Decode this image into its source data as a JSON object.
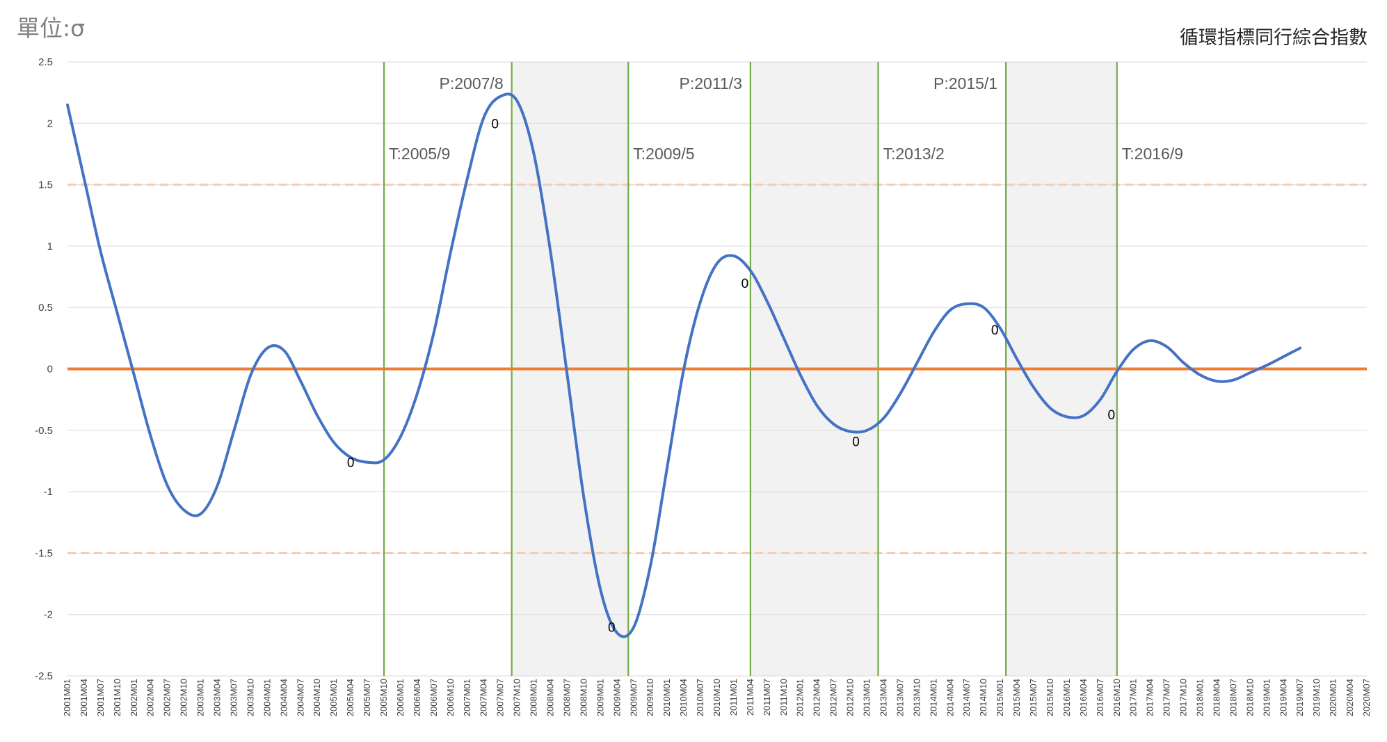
{
  "unit_label": "單位:σ",
  "chart_title": "循環指標同行綜合指數",
  "chart_data": {
    "type": "line",
    "title": "循環指標同行綜合指數",
    "ylabel": "單位:σ",
    "ylim": [
      -2.5,
      2.5
    ],
    "yticks": [
      "2.5",
      "2",
      "1.5",
      "1",
      "0.5",
      "0",
      "-0.5",
      "-1",
      "-1.5",
      "-2",
      "-2.5"
    ],
    "ytick_values": [
      2.5,
      2,
      1.5,
      1,
      0.5,
      0,
      -0.5,
      -1,
      -1.5,
      -2,
      -2.5
    ],
    "x_start": "2001M01",
    "x_end": "2020M07",
    "xtick_step_months": 3,
    "grid": "horizontal",
    "colors": {
      "series": "#4472C4",
      "zero_line": "#ED7D31",
      "threshold": "#F8CBAD",
      "turning_point": "#70AD47",
      "shading": "#F2F2F2",
      "grid": "#D9D9D9"
    },
    "series": [
      {
        "points": [
          [
            "2001M01",
            2.15
          ],
          [
            "2001M04",
            1.55
          ],
          [
            "2001M07",
            0.95
          ],
          [
            "2001M10",
            0.45
          ],
          [
            "2002M01",
            -0.05
          ],
          [
            "2002M04",
            -0.55
          ],
          [
            "2002M07",
            -0.95
          ],
          [
            "2002M10",
            -1.15
          ],
          [
            "2003M01",
            -1.18
          ],
          [
            "2003M04",
            -0.95
          ],
          [
            "2003M07",
            -0.5
          ],
          [
            "2003M10",
            -0.05
          ],
          [
            "2004M01",
            0.17
          ],
          [
            "2004M04",
            0.15
          ],
          [
            "2004M07",
            -0.1
          ],
          [
            "2004M10",
            -0.38
          ],
          [
            "2005M01",
            -0.6
          ],
          [
            "2005M04",
            -0.72
          ],
          [
            "2005M07",
            -0.76
          ],
          [
            "2005M10",
            -0.74
          ],
          [
            "2006M01",
            -0.55
          ],
          [
            "2006M04",
            -0.2
          ],
          [
            "2006M07",
            0.3
          ],
          [
            "2006M10",
            0.95
          ],
          [
            "2007M01",
            1.55
          ],
          [
            "2007M04",
            2.05
          ],
          [
            "2007M07",
            2.22
          ],
          [
            "2007M10",
            2.18
          ],
          [
            "2008M01",
            1.75
          ],
          [
            "2008M04",
            0.95
          ],
          [
            "2008M07",
            -0.05
          ],
          [
            "2008M10",
            -1.05
          ],
          [
            "2009M01",
            -1.8
          ],
          [
            "2009M04",
            -2.15
          ],
          [
            "2009M07",
            -2.1
          ],
          [
            "2009M10",
            -1.6
          ],
          [
            "2010M01",
            -0.8
          ],
          [
            "2010M04",
            0.0
          ],
          [
            "2010M07",
            0.55
          ],
          [
            "2010M10",
            0.86
          ],
          [
            "2011M01",
            0.92
          ],
          [
            "2011M04",
            0.8
          ],
          [
            "2011M07",
            0.55
          ],
          [
            "2011M10",
            0.25
          ],
          [
            "2012M01",
            -0.05
          ],
          [
            "2012M04",
            -0.3
          ],
          [
            "2012M07",
            -0.45
          ],
          [
            "2012M10",
            -0.51
          ],
          [
            "2013M01",
            -0.5
          ],
          [
            "2013M04",
            -0.4
          ],
          [
            "2013M07",
            -0.2
          ],
          [
            "2013M10",
            0.05
          ],
          [
            "2014M01",
            0.3
          ],
          [
            "2014M04",
            0.48
          ],
          [
            "2014M07",
            0.53
          ],
          [
            "2014M10",
            0.5
          ],
          [
            "2015M01",
            0.33
          ],
          [
            "2015M04",
            0.08
          ],
          [
            "2015M07",
            -0.15
          ],
          [
            "2015M10",
            -0.32
          ],
          [
            "2016M01",
            -0.39
          ],
          [
            "2016M04",
            -0.38
          ],
          [
            "2016M07",
            -0.25
          ],
          [
            "2016M10",
            -0.02
          ],
          [
            "2017M01",
            0.16
          ],
          [
            "2017M04",
            0.23
          ],
          [
            "2017M07",
            0.18
          ],
          [
            "2017M10",
            0.05
          ],
          [
            "2018M01",
            -0.05
          ],
          [
            "2018M04",
            -0.1
          ],
          [
            "2018M07",
            -0.09
          ],
          [
            "2018M10",
            -0.03
          ],
          [
            "2019M01",
            0.03
          ],
          [
            "2019M04",
            0.1
          ],
          [
            "2019M07",
            0.17
          ]
        ]
      }
    ],
    "reference_lines": [
      {
        "y": 0,
        "style": "solid",
        "color": "#ED7D31"
      },
      {
        "y": 1.5,
        "style": "dashed",
        "color": "#F8CBAD"
      },
      {
        "y": -1.5,
        "style": "dashed",
        "color": "#F8CBAD"
      }
    ],
    "turning_points": [
      {
        "date": "2005M10",
        "label": "T:2005/9"
      },
      {
        "date": "2007M09",
        "label": "P:2007/8"
      },
      {
        "date": "2009M06",
        "label": "T:2009/5"
      },
      {
        "date": "2011M04",
        "label": "P:2011/3"
      },
      {
        "date": "2013M03",
        "label": "T:2013/2"
      },
      {
        "date": "2015M02",
        "label": "P:2015/1"
      },
      {
        "date": "2016M10",
        "label": "T:2016/9"
      }
    ],
    "recession_shading": [
      [
        "2007M09",
        "2009M06"
      ],
      [
        "2011M04",
        "2013M03"
      ],
      [
        "2015M02",
        "2016M10"
      ]
    ],
    "point_labels": [
      {
        "date": "2005M04",
        "y": -0.76,
        "text": "0"
      },
      {
        "date": "2007M06",
        "y": 2.0,
        "text": "0"
      },
      {
        "date": "2009M03",
        "y": -2.1,
        "text": "0"
      },
      {
        "date": "2011M03",
        "y": 0.7,
        "text": "0"
      },
      {
        "date": "2012M11",
        "y": -0.59,
        "text": "0"
      },
      {
        "date": "2014M12",
        "y": 0.32,
        "text": "0"
      },
      {
        "date": "2016M09",
        "y": -0.37,
        "text": "0"
      }
    ]
  }
}
